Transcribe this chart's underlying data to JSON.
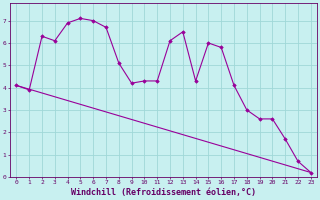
{
  "bg_color": "#c8f0f0",
  "grid_color": "#a0d8d8",
  "line_color": "#990099",
  "marker_color": "#990099",
  "xlabel": "Windchill (Refroidissement éolien,°C)",
  "xlim": [
    -0.5,
    23.5
  ],
  "ylim": [
    0,
    7.8
  ],
  "yticks": [
    0,
    1,
    2,
    3,
    4,
    5,
    6,
    7
  ],
  "xticks": [
    0,
    1,
    2,
    3,
    4,
    5,
    6,
    7,
    8,
    9,
    10,
    11,
    12,
    13,
    14,
    15,
    16,
    17,
    18,
    19,
    20,
    21,
    22,
    23
  ],
  "line1_x": [
    0,
    1,
    2,
    3,
    4,
    5,
    6,
    7,
    8,
    9,
    10,
    11,
    12,
    13,
    14,
    15,
    16,
    17,
    18,
    19,
    20,
    21,
    22,
    23
  ],
  "line1_y": [
    4.1,
    3.9,
    6.3,
    6.1,
    6.9,
    7.1,
    7.0,
    6.7,
    5.1,
    4.2,
    4.3,
    4.3,
    6.1,
    6.5,
    4.3,
    6.0,
    5.8,
    4.1,
    3.0,
    2.6,
    2.6,
    1.7,
    0.7,
    0.2
  ],
  "line2_x": [
    0,
    23
  ],
  "line2_y": [
    4.1,
    0.2
  ],
  "font_color": "#660066",
  "tick_fontsize": 4.5,
  "xlabel_fontsize": 6.0,
  "figsize": [
    3.2,
    2.0
  ],
  "dpi": 100
}
